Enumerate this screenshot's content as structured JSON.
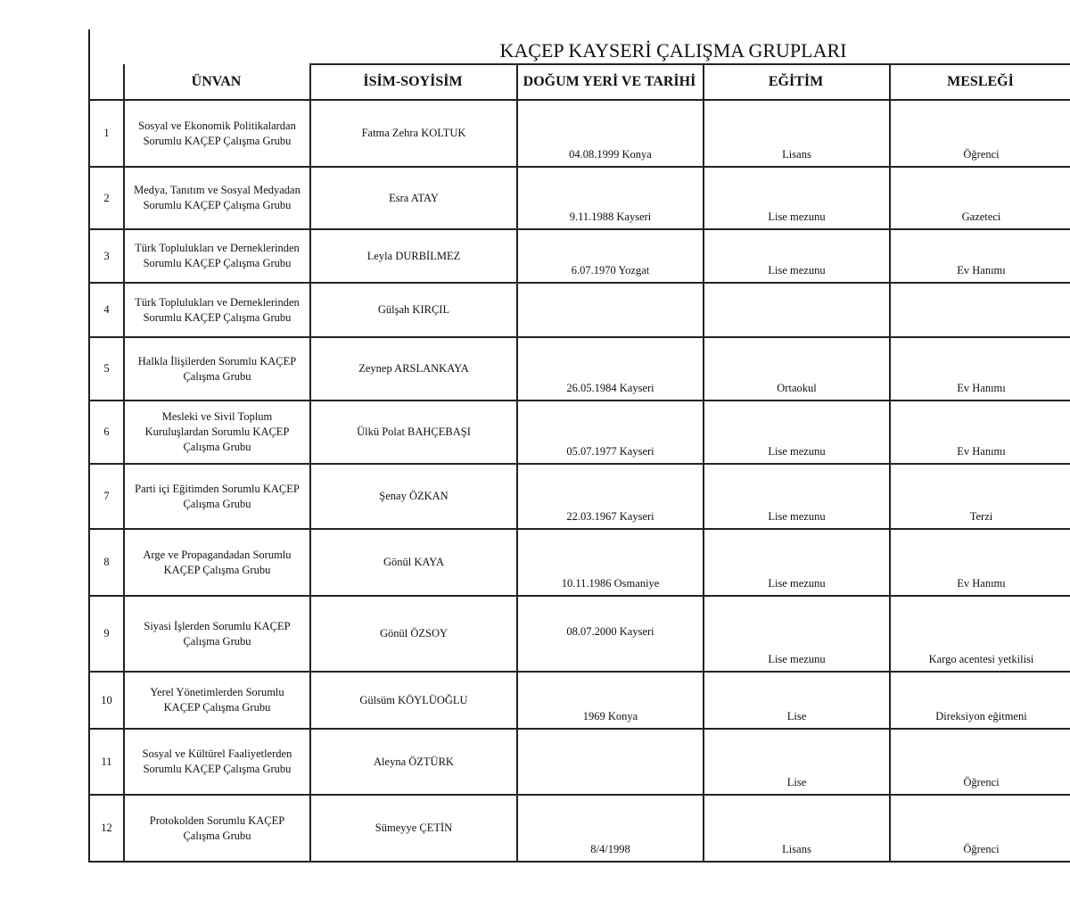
{
  "title": "KAÇEP KAYSERİ ÇALIŞMA GRUPLARI",
  "headers": [
    "",
    "ÜNVAN",
    "İSİM-SOYİSİM",
    "DOĞUM YERİ VE TARİHİ",
    "EĞİTİM",
    "MESLEĞİ"
  ],
  "rows": [
    {
      "no": "1",
      "title": "Sosyal ve Ekonomik Politikalardan\nSorumlu KAÇEP Çalışma Grubu",
      "name": "Fatma Zehra KOLTUK",
      "birth": "04.08.1999 Konya",
      "education": "Lisans",
      "job": "Öğrenci"
    },
    {
      "no": "2",
      "title": "Medya, Tanıtım ve Sosyal Medyadan\nSorumlu KAÇEP Çalışma Grubu",
      "name": "Esra ATAY",
      "birth": "9.11.1988 Kayseri",
      "education": "Lise mezunu",
      "job": "Gazeteci"
    },
    {
      "no": "3",
      "title": "Türk Toplulukları ve Derneklerinden\nSorumlu KAÇEP Çalışma Grubu",
      "name": "Leyla DURBİLMEZ",
      "birth": "6.07.1970 Yozgat",
      "education": "Lise mezunu",
      "job": "Ev Hanımı"
    },
    {
      "no": "4",
      "title": "Türk Toplulukları ve Derneklerinden\nSorumlu KAÇEP Çalışma Grubu",
      "name": "Gülşah KIRÇIL",
      "birth": "",
      "education": "",
      "job": ""
    },
    {
      "no": "5",
      "title": "Halkla İlişilerden Sorumlu KAÇEP\nÇalışma Grubu",
      "name": "Zeynep ARSLANKAYA",
      "birth": "26.05.1984 Kayseri",
      "education": "Ortaokul",
      "job": "Ev Hanımı"
    },
    {
      "no": "6",
      "title": "Mesleki ve Sivil Toplum\nKuruluşlardan Sorumlu KAÇEP\nÇalışma Grubu",
      "name": "Ülkü Polat BAHÇEBAŞI",
      "birth": "05.07.1977 Kayseri",
      "education": "Lise mezunu",
      "job": "Ev Hanımı"
    },
    {
      "no": "7",
      "title": "Parti içi Eğitimden Sorumlu KAÇEP\nÇalışma Grubu",
      "name": "Şenay ÖZKAN",
      "birth": "22.03.1967 Kayseri",
      "education": "Lise mezunu",
      "job": "Terzi"
    },
    {
      "no": "8",
      "title": "Arge ve Propagandadan Sorumlu\nKAÇEP Çalışma Grubu",
      "name": "Gönül KAYA",
      "birth": "10.11.1986 Osmaniye",
      "education": "Lise mezunu",
      "job": "Ev Hanımı"
    },
    {
      "no": "9",
      "title": "Siyasi İşlerden Sorumlu KAÇEP\nÇalışma Grubu",
      "name": "Gönül ÖZSOY",
      "birth": "08.07.2000 Kayseri",
      "education": "Lise mezunu",
      "job": "Kargo acentesi yetkilisi"
    },
    {
      "no": "10",
      "title": "Yerel Yönetimlerden Sorumlu\nKAÇEP  Çalışma Grubu",
      "name": "Gülsüm KÖYLÜOĞLU",
      "birth": "1969 Konya",
      "education": "Lise",
      "job": "Direksiyon eğitmeni"
    },
    {
      "no": "11",
      "title": "Sosyal ve Kültürel Faaliyetlerden\nSorumlu KAÇEP  Çalışma Grubu",
      "name": "Aleyna ÖZTÜRK",
      "birth": "",
      "education": "Lise",
      "job": "Öğrenci"
    },
    {
      "no": "12",
      "title": "Protokolden Sorumlu KAÇEP\nÇalışma Grubu",
      "name": "Sümeyye ÇETİN",
      "birth": "8/4/1998",
      "education": "Lisans",
      "job": "Öğrenci"
    }
  ]
}
